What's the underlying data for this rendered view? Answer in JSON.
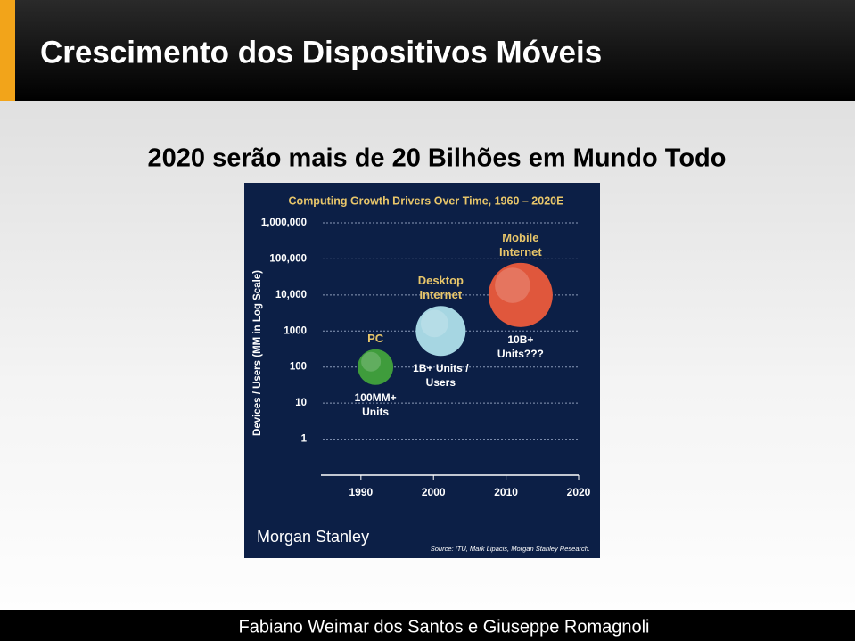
{
  "slide": {
    "title": "Crescimento dos Dispositivos Móveis",
    "subtitle": "2020 serão mais de 20 Bilhões em Mundo Todo",
    "footer": "Fabiano Weimar dos Santos e Giuseppe Romagnoli"
  },
  "chart_data": {
    "type": "bubble",
    "title": "Computing Growth Drivers Over Time, 1960 – 2020E",
    "y_label": "Devices / Users (MM in Log Scale)",
    "log_y": true,
    "grid": true,
    "xlim": [
      1984,
      2020
    ],
    "xticks": [
      1990,
      2000,
      2010,
      2020
    ],
    "ylim": [
      0.1,
      1000000
    ],
    "yticks": [
      1,
      10,
      100,
      1000,
      {
        "value": 10000,
        "label": "10,000"
      },
      {
        "value": 100000,
        "label": "100,000"
      },
      {
        "value": 1000000,
        "label": "1,000,000"
      }
    ],
    "series": [
      {
        "name": "PC",
        "color": "#3f9c3c",
        "x": [
          1992
        ],
        "values": [
          100
        ],
        "annotation": "100MM+ Units"
      },
      {
        "name": "Desktop Internet",
        "color": "#a6d6e2",
        "x": [
          2001
        ],
        "values": [
          1000
        ],
        "annotation": "1B+ Units / Users"
      },
      {
        "name": "Mobile Internet",
        "color": "#e0573c",
        "x": [
          2012
        ],
        "values": [
          10000
        ],
        "annotation": "10B+ Units???"
      }
    ],
    "logo": "Morgan Stanley",
    "source": "Source: ITU, Mark Lipacis, Morgan Stanley Research."
  }
}
